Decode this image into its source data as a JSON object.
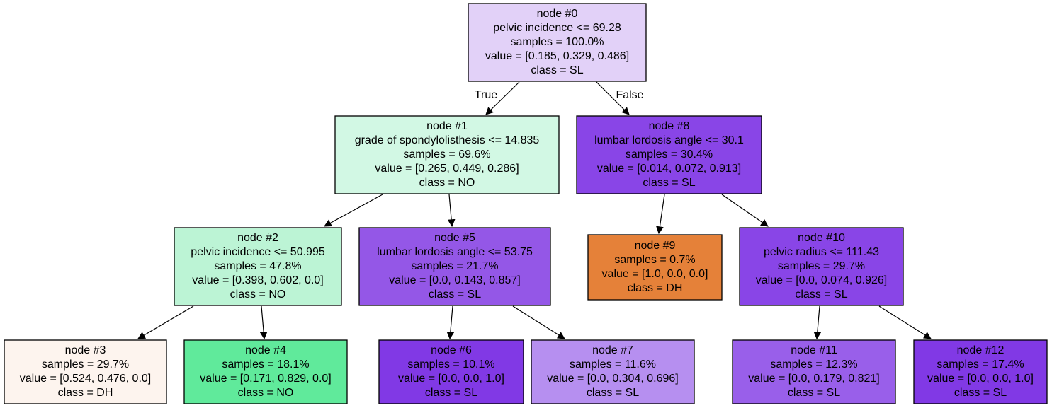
{
  "nodes": [
    {
      "id": 0,
      "lines": [
        "node #0",
        "pelvic incidence <= 69.28",
        "samples = 100.0%",
        "value = [0.185, 0.329, 0.486]",
        "class = SL"
      ],
      "fill": "#e2d1f8"
    },
    {
      "id": 1,
      "lines": [
        "node #1",
        "grade of spondylolisthesis <= 14.835",
        "samples = 69.6%",
        "value = [0.265, 0.449, 0.286]",
        "class = NO"
      ],
      "fill": "#d2f8e4"
    },
    {
      "id": 2,
      "lines": [
        "node #2",
        "pelvic incidence <= 50.995",
        "samples = 47.8%",
        "value = [0.398, 0.602, 0.0]",
        "class = NO"
      ],
      "fill": "#bcf4d5"
    },
    {
      "id": 3,
      "lines": [
        "node #3",
        "samples = 29.7%",
        "value = [0.524, 0.476, 0.0]",
        "class = DH"
      ],
      "fill": "#fdf4ee"
    },
    {
      "id": 4,
      "lines": [
        "node #4",
        "samples = 18.1%",
        "value = [0.171, 0.829, 0.0]",
        "class = NO"
      ],
      "fill": "#60ea9b"
    },
    {
      "id": 5,
      "lines": [
        "node #5",
        "lumbar lordosis angle <= 53.75",
        "samples = 21.7%",
        "value = [0.0, 0.143, 0.857]",
        "class = SL"
      ],
      "fill": "#9457e7"
    },
    {
      "id": 6,
      "lines": [
        "node #6",
        "samples = 10.1%",
        "value = [0.0, 0.0, 1.0]",
        "class = SL"
      ],
      "fill": "#8139e5"
    },
    {
      "id": 7,
      "lines": [
        "node #7",
        "samples = 11.6%",
        "value = [0.0, 0.304, 0.696]",
        "class = SL"
      ],
      "fill": "#b68ff0"
    },
    {
      "id": 8,
      "lines": [
        "node #8",
        "lumbar lordosis angle <= 30.1",
        "samples = 30.4%",
        "value = [0.014, 0.072, 0.913]",
        "class = SL"
      ],
      "fill": "#8945e7"
    },
    {
      "id": 9,
      "lines": [
        "node #9",
        "samples = 0.7%",
        "value = [1.0, 0.0, 0.0]",
        "class = DH"
      ],
      "fill": "#e58139"
    },
    {
      "id": 10,
      "lines": [
        "node #10",
        "pelvic radius <= 111.43",
        "samples = 29.7%",
        "value = [0.0, 0.074, 0.926]",
        "class = SL"
      ],
      "fill": "#8945e7"
    },
    {
      "id": 11,
      "lines": [
        "node #11",
        "samples = 12.3%",
        "value = [0.0, 0.179, 0.821]",
        "class = SL"
      ],
      "fill": "#995fea"
    },
    {
      "id": 12,
      "lines": [
        "node #12",
        "samples = 17.4%",
        "value = [0.0, 0.0, 1.0]",
        "class = SL"
      ],
      "fill": "#8139e5"
    }
  ],
  "edges": [
    {
      "from": 0,
      "to": 1,
      "label": "True"
    },
    {
      "from": 0,
      "to": 8,
      "label": "False"
    },
    {
      "from": 1,
      "to": 2
    },
    {
      "from": 1,
      "to": 5
    },
    {
      "from": 2,
      "to": 3
    },
    {
      "from": 2,
      "to": 4
    },
    {
      "from": 5,
      "to": 6
    },
    {
      "from": 5,
      "to": 7
    },
    {
      "from": 8,
      "to": 9
    },
    {
      "from": 8,
      "to": 10
    },
    {
      "from": 10,
      "to": 11
    },
    {
      "from": 10,
      "to": 12
    }
  ]
}
